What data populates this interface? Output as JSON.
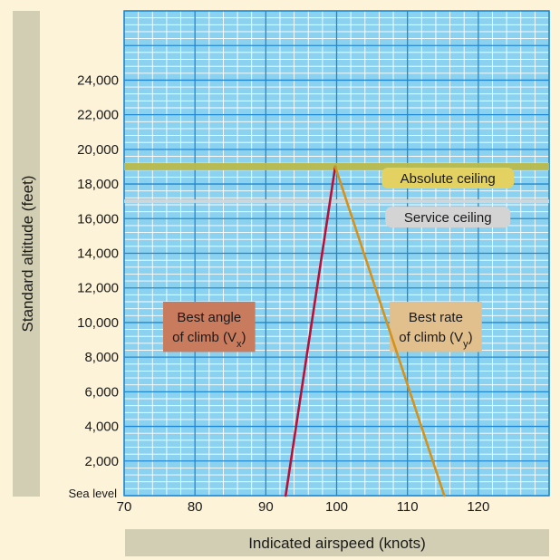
{
  "chart_data": {
    "type": "line",
    "xlabel": "Indicated airspeed (knots)",
    "ylabel": "Standard altitude (feet)",
    "xlim": [
      70,
      130
    ],
    "ylim": [
      0,
      28000
    ],
    "x_ticks": [
      "70",
      "80",
      "90",
      "100",
      "110",
      "120"
    ],
    "x_tick_values": [
      70,
      80,
      90,
      100,
      110,
      120
    ],
    "y_ticks": [
      "Sea level",
      "2,000",
      "4,000",
      "6,000",
      "8,000",
      "10,000",
      "12,000",
      "14,000",
      "16,000",
      "18,000",
      "20,000",
      "22,000",
      "24,000"
    ],
    "y_tick_values": [
      0,
      2000,
      4000,
      6000,
      8000,
      10000,
      12000,
      14000,
      16000,
      18000,
      20000,
      22000,
      24000
    ],
    "grid": true,
    "series": [
      {
        "points": [
          [
            92.8,
            0
          ],
          [
            99.8,
            19000
          ]
        ],
        "color": "#b5123a"
      },
      {
        "points": [
          [
            99.8,
            19000
          ],
          [
            115.2,
            0
          ]
        ],
        "color": "#d4921c"
      }
    ],
    "reference_lines": [
      {
        "label": "Absolute ceiling",
        "y": 19000,
        "color": "#b9b94a",
        "label_color": "#e3d262"
      },
      {
        "label": "Service ceiling",
        "y": 17000,
        "color": "#d6d6d6",
        "label_color": "#d4d4d4"
      }
    ],
    "annotations": [
      {
        "line1": "Best angle",
        "line2": "of climb (V",
        "sub": "x",
        "close": ")",
        "color": "#c97b5e",
        "x_range": [
          75.5,
          88.5
        ],
        "y_range": [
          8300,
          11200
        ]
      },
      {
        "line1": "Best rate",
        "line2": "of climb (V",
        "sub": "y",
        "close": ")",
        "color": "#e1c08e",
        "x_range": [
          107.5,
          120.5
        ],
        "y_range": [
          8300,
          11200
        ]
      }
    ],
    "colors": {
      "plot_bg": "#8bd2f0",
      "major_grid": "#1f87cf",
      "minor_grid": "#ffffff",
      "label_band": "#d2ceb3",
      "page_bg": "#fdf3d9"
    }
  }
}
